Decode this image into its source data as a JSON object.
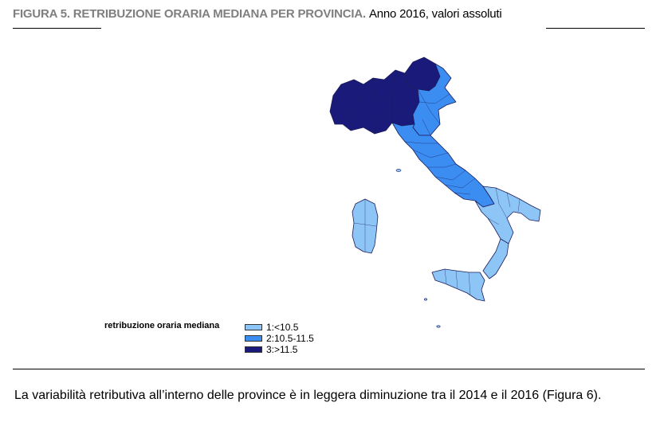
{
  "figure": {
    "label": "FIGURA 5. RETRIBUZIONE ORARIA MEDIANA PER PROVINCIA.",
    "subtitle": "Anno 2016, valori assoluti"
  },
  "legend": {
    "title": "retribuzione oraria mediana",
    "items": [
      {
        "label": "1:<10.5",
        "color": "#8ec5f7"
      },
      {
        "label": "2:10.5-11.5",
        "color": "#3b8df2"
      },
      {
        "label": "3:>11.5",
        "color": "#1a1a7a"
      }
    ]
  },
  "map": {
    "regions": [
      {
        "name": "northwest",
        "class": 3
      },
      {
        "name": "northeast-alps",
        "class": 3
      },
      {
        "name": "north-plain",
        "class": 2
      },
      {
        "name": "center",
        "class": 2
      },
      {
        "name": "south-east",
        "class": 1
      },
      {
        "name": "calabria",
        "class": 1
      },
      {
        "name": "sardinia",
        "class": 1
      },
      {
        "name": "sicily",
        "class": 1
      }
    ]
  },
  "body": {
    "text": "La variabilità retributiva all’interno delle province è in leggera diminuzione tra il 2014 e il 2016 (Figura 6)."
  }
}
